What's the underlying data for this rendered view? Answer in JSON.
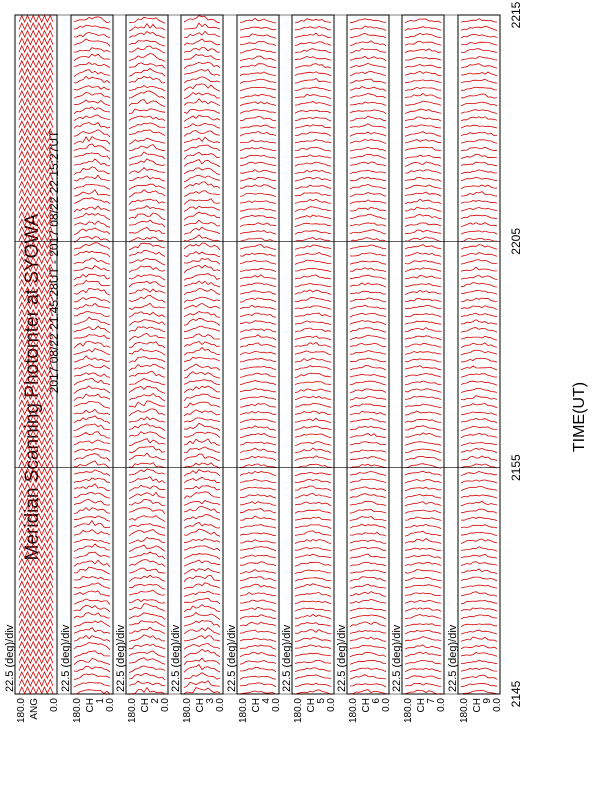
{
  "title": "Meridian Scanning Photomter at SYOWA",
  "time_range": "2017 08/22 21:45:28UT - 2017 08/22 22:15:27UT",
  "x_axis_label": "TIME(UT)",
  "colors": {
    "trace": "#d40000",
    "frame": "#000000",
    "background": "#ffffff"
  },
  "chart_data": {
    "type": "line",
    "title": "Meridian Scanning Photomter at SYOWA",
    "subtitle": "2017 08/22 21:45:28UT - 2017 08/22 22:15:27UT",
    "xlabel": "TIME(UT)",
    "x_ticks": [
      "2145",
      "2155",
      "2205",
      "2215"
    ],
    "xlim": [
      "2145",
      "2215"
    ],
    "scale_label": "22.5 (deg)/div",
    "ylim": [
      0.0,
      180.0
    ],
    "y_tick_labels": [
      "180.0",
      "0.0"
    ],
    "panels": [
      {
        "name": "ANG",
        "ylabel": "ANG",
        "channel": ""
      },
      {
        "name": "CH1",
        "ylabel": "CH",
        "channel": "1"
      },
      {
        "name": "CH2",
        "ylabel": "CH",
        "channel": "2"
      },
      {
        "name": "CH3",
        "ylabel": "CH",
        "channel": "3"
      },
      {
        "name": "CH4",
        "ylabel": "CH",
        "channel": "4"
      },
      {
        "name": "CH5",
        "ylabel": "CH",
        "channel": "5"
      },
      {
        "name": "CH6",
        "ylabel": "CH",
        "channel": "6"
      },
      {
        "name": "CH7",
        "ylabel": "CH",
        "channel": "7"
      },
      {
        "name": "CH9",
        "ylabel": "CH",
        "channel": "9"
      }
    ],
    "scan_count": 90,
    "grid": false,
    "legend": "none"
  }
}
